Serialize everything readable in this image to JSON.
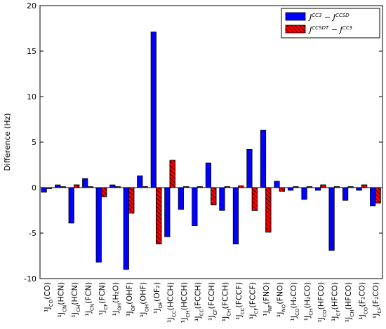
{
  "chart_data": {
    "type": "bar",
    "ylabel": "Difference (Hz)",
    "categories": [
      "¹J_CO(CO)",
      "¹J_CN(HCN)",
      "¹J_CH(HCN)",
      "¹J_CN(FCN)",
      "¹J_CF(FCN)",
      "¹J_OH(H₂O)",
      "¹J_OF(OHF)",
      "¹J_OH(OHF)",
      "¹J_OF(OF₂)",
      "¹J_CC(HCCH)",
      "¹J_CH(HCCH)",
      "¹J_CC(FCCH)",
      "¹J_CF(FCCH)",
      "¹J_CH(FCCH)",
      "¹J_CC(FCCF)",
      "¹J_CF(FCCF)",
      "¹J_NF(FNO)",
      "¹J_NO(FNO)",
      "¹J_CO(H₂CO)",
      "¹J_CH(H₂CO)",
      "¹J_CO(HFCO)",
      "¹J_CF(HFCO)",
      "¹J_CH(HFCO)",
      "¹J_CO(F₂CO)",
      "¹J_CF(F₂CO)"
    ],
    "series": [
      {
        "name": "J^CC3 − J^CCSD",
        "color": "#0000ff",
        "hatch": false,
        "values": [
          -0.5,
          0.3,
          -3.9,
          1.0,
          -8.2,
          0.3,
          -9.0,
          1.3,
          17.1,
          -5.4,
          -2.4,
          -4.2,
          2.7,
          -2.5,
          -6.2,
          4.2,
          6.3,
          0.7,
          -0.3,
          -1.3,
          -0.3,
          -6.9,
          -1.4,
          -0.3,
          -2.0
        ]
      },
      {
        "name": "J^CCSDT − J^CC3",
        "color": "#ff0000",
        "hatch": true,
        "values": [
          -0.1,
          0.1,
          0.3,
          0.1,
          -1.0,
          0.1,
          -2.8,
          0.1,
          -6.2,
          3.0,
          0.1,
          0.1,
          -1.9,
          0.1,
          0.2,
          -2.5,
          -4.9,
          -0.4,
          0.1,
          0.1,
          0.3,
          0.1,
          0.1,
          0.3,
          -1.7
        ]
      }
    ],
    "ylim": [
      -10,
      20
    ],
    "yticks": [
      -10,
      -5,
      0,
      5,
      10,
      15,
      20
    ],
    "legend": "upper right",
    "grid": false
  }
}
